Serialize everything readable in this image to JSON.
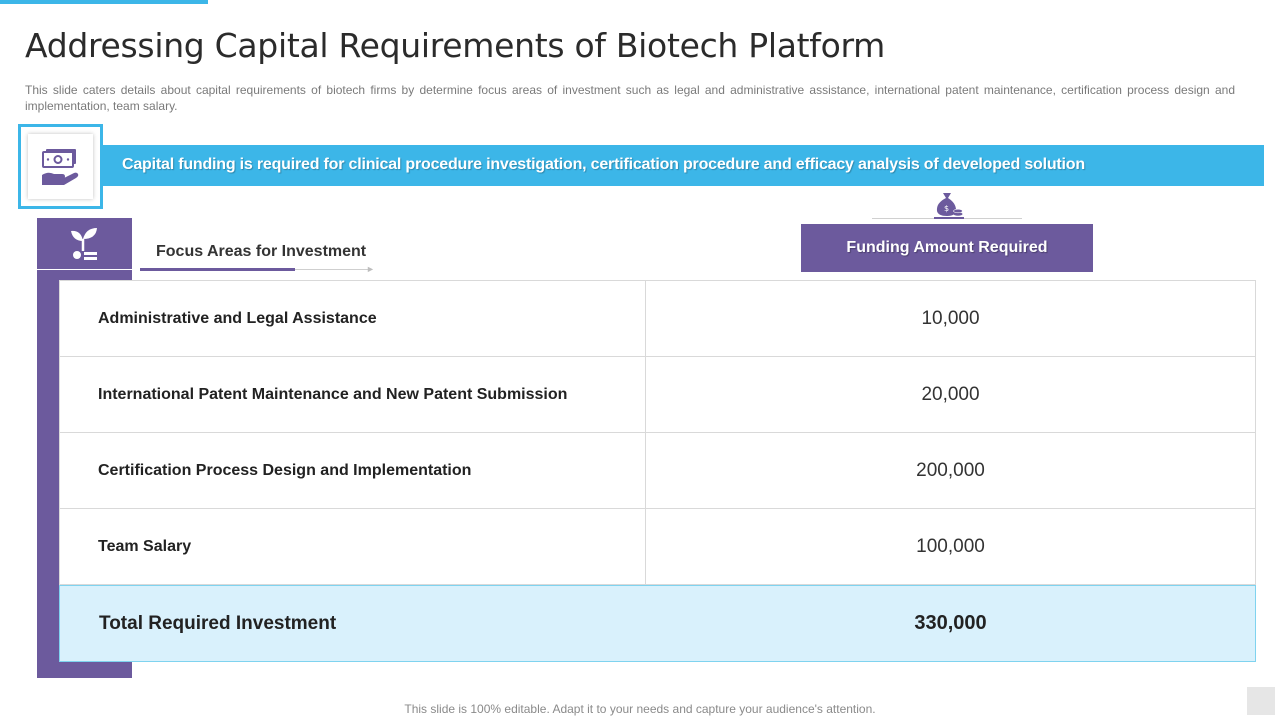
{
  "slide": {
    "title": "Addressing Capital Requirements of Biotech Platform",
    "subtitle": "This slide caters details about capital requirements of biotech firms by determine focus areas of investment such as legal and administrative assistance, international patent maintenance, certification process design and implementation, team salary.",
    "banner_text": "Capital funding is required for clinical procedure investigation, certification procedure and efficacy analysis of developed solution",
    "focus_header": "Focus Areas for Investment",
    "funding_header": "Funding Amount Required",
    "rows": [
      {
        "label": "Administrative and Legal Assistance",
        "amount": "10,000"
      },
      {
        "label": "International Patent Maintenance and New Patent Submission",
        "amount": "20,000"
      },
      {
        "label": "Certification Process  Design and Implementation",
        "amount": "200,000"
      },
      {
        "label": "Team Salary",
        "amount": "100,000"
      }
    ],
    "total": {
      "label": "Total Required Investment",
      "amount": "330,000"
    },
    "footer": "This slide is 100% editable. Adapt it to your needs and capture your audience's attention."
  },
  "colors": {
    "accent_blue": "#3cb6e8",
    "purple": "#6c5a9d",
    "total_row_bg": "#d9f1fc"
  },
  "icons": {
    "banner": "money-hand-icon",
    "focus": "plant-growth-icon",
    "funding": "money-bag-icon"
  }
}
